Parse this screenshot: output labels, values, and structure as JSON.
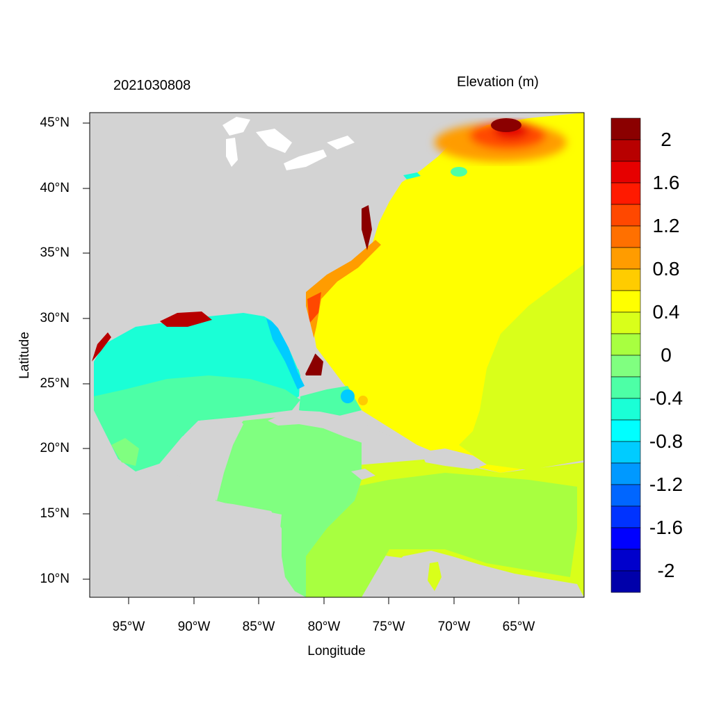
{
  "title_left": "2021030808",
  "title_right": "Elevation (m)",
  "xlabel": "Longitude",
  "ylabel": "Latitude",
  "x_ticks": [
    "95°W",
    "90°W",
    "85°W",
    "80°W",
    "75°W",
    "70°W",
    "65°W"
  ],
  "y_ticks": [
    "45°N",
    "40°N",
    "35°N",
    "30°N",
    "25°N",
    "20°N",
    "15°N",
    "10°N"
  ],
  "map": {
    "lon_range": [
      -98,
      -60
    ],
    "lat_range": [
      8.5,
      46
    ],
    "land_color": "#d3d3d3",
    "lakes_color": "#ffffff"
  },
  "colorbar": {
    "labels": [
      "2",
      "1.6",
      "1.2",
      "0.8",
      "0.4",
      "0",
      "-0.4",
      "-0.8",
      "-1.2",
      "-1.6",
      "-2"
    ],
    "colors": [
      "#8b0000",
      "#b80000",
      "#e60000",
      "#ff1a00",
      "#ff4800",
      "#ff7000",
      "#ff9c00",
      "#ffcc00",
      "#ffff00",
      "#d9ff1a",
      "#a8ff40",
      "#80ff80",
      "#4dffa6",
      "#1affd6",
      "#00ffff",
      "#00ccff",
      "#0099ff",
      "#0066ff",
      "#0033ff",
      "#0000ff",
      "#0000cc",
      "#0000aa"
    ]
  }
}
